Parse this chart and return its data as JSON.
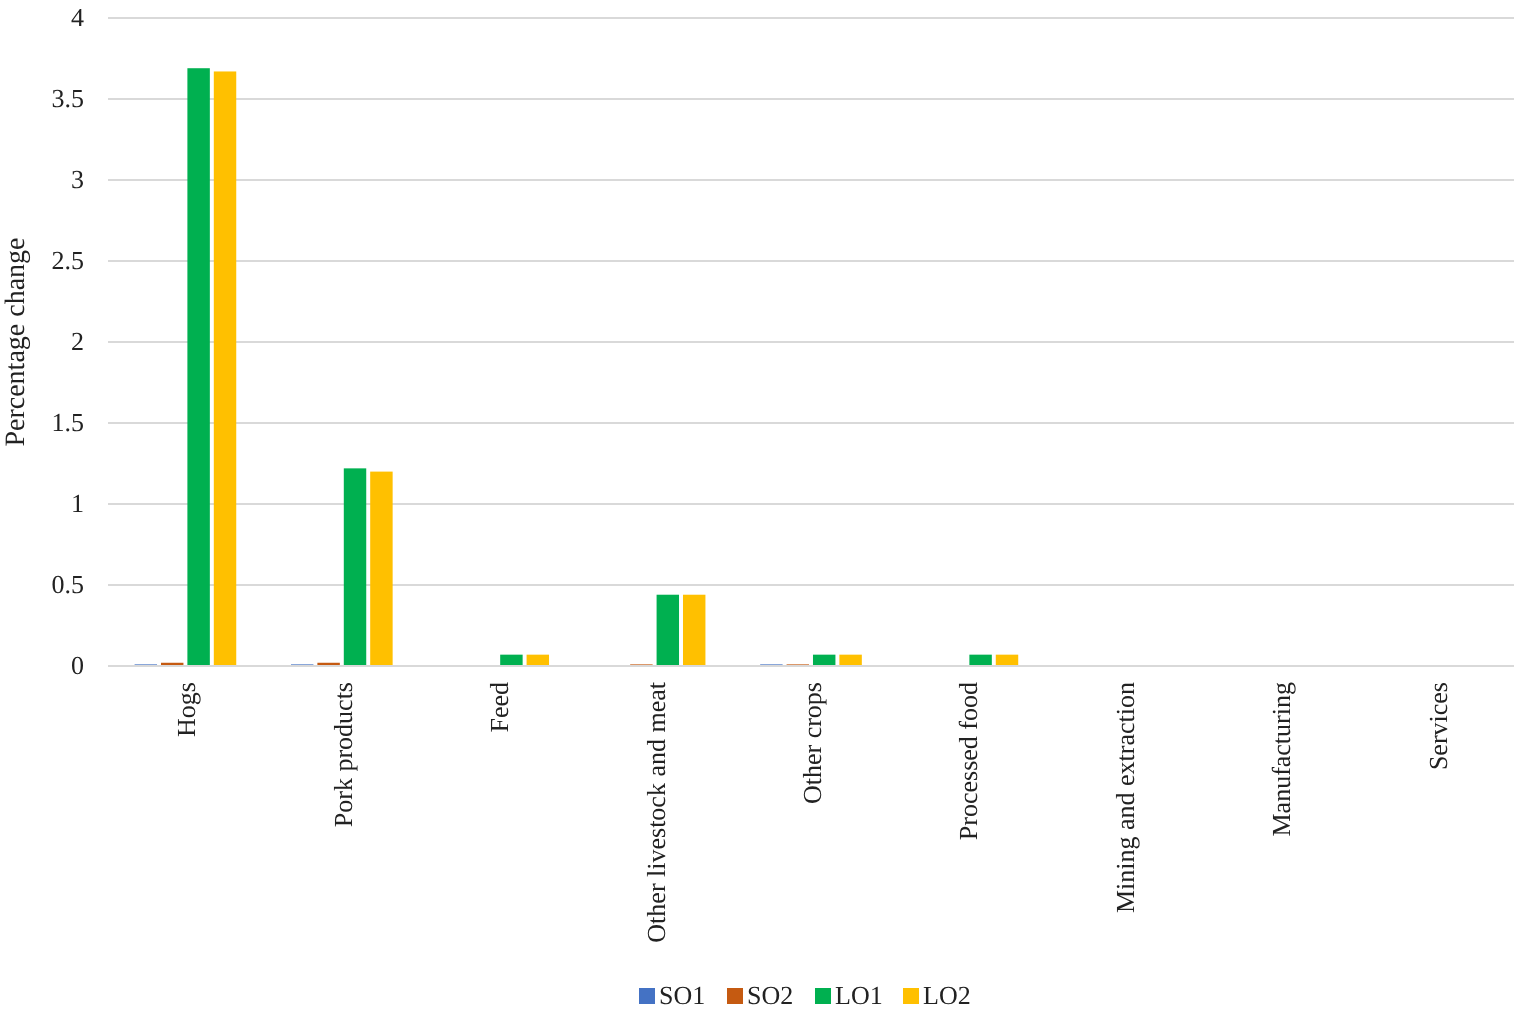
{
  "chart_data": {
    "type": "bar",
    "ylabel": "Percentage change",
    "categories": [
      "Hogs",
      "Pork products",
      "Feed",
      "Other livestock and meat",
      "Other crops",
      "Processed food",
      "Mining and extraction",
      "Manufacturing",
      "Services"
    ],
    "series": [
      {
        "name": "SO1",
        "color": "#4472c4",
        "values": [
          0.01,
          0.01,
          0,
          0,
          0.01,
          0,
          0,
          0,
          0
        ]
      },
      {
        "name": "SO2",
        "color": "#c55a11",
        "values": [
          0.02,
          0.02,
          0,
          0.01,
          0.01,
          0,
          0,
          0,
          0
        ]
      },
      {
        "name": "LO1",
        "color": "#00b050",
        "values": [
          3.69,
          1.22,
          0.07,
          0.44,
          0.07,
          0.07,
          0,
          0,
          0
        ]
      },
      {
        "name": "LO2",
        "color": "#ffc000",
        "values": [
          3.67,
          1.2,
          0.07,
          0.44,
          0.07,
          0.07,
          0,
          0,
          0
        ]
      }
    ],
    "ylim": [
      0,
      4
    ],
    "yticks": [
      0,
      0.5,
      1,
      1.5,
      2,
      2.5,
      3,
      3.5,
      4
    ],
    "grid": "y",
    "legend": "bottom"
  }
}
